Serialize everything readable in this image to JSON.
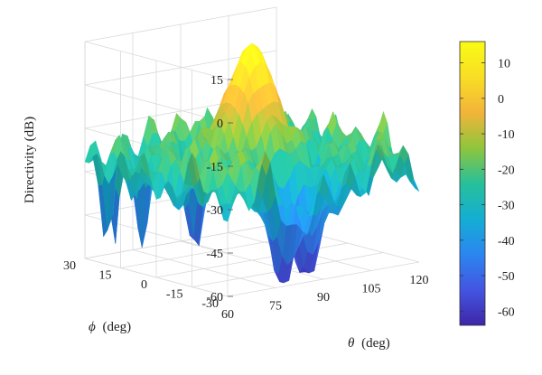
{
  "chart_data": {
    "type": "surface",
    "x": {
      "quantity": "θ",
      "unit": "(deg)",
      "ticks": [
        60,
        75,
        90,
        105,
        120
      ],
      "range": [
        60,
        120
      ]
    },
    "y": {
      "quantity": "ϕ",
      "unit": "(deg)",
      "ticks": [
        30,
        15,
        0,
        -15,
        -30
      ],
      "range": [
        -30,
        30
      ]
    },
    "z": {
      "label": "Directivity (dB)",
      "ticks": [
        15,
        0,
        -15,
        -30,
        -45,
        -60
      ],
      "range": [
        -60,
        15
      ]
    },
    "main_lobe": {
      "theta": 90,
      "phi": 0,
      "peak_db": 15
    },
    "sidelobe_floor_db": -25,
    "null_depth_db": -60,
    "colorbar": {
      "ticks": [
        10,
        0,
        -10,
        -20,
        -30,
        -40,
        -50,
        -60
      ],
      "range": [
        -64,
        16
      ],
      "colormap": [
        "#3e26a8",
        "#4355e2",
        "#2b86f0",
        "#14aed4",
        "#27c09a",
        "#8fc53c",
        "#f2b43a",
        "#f8de24",
        "#f9fb15"
      ]
    },
    "grid": true
  }
}
